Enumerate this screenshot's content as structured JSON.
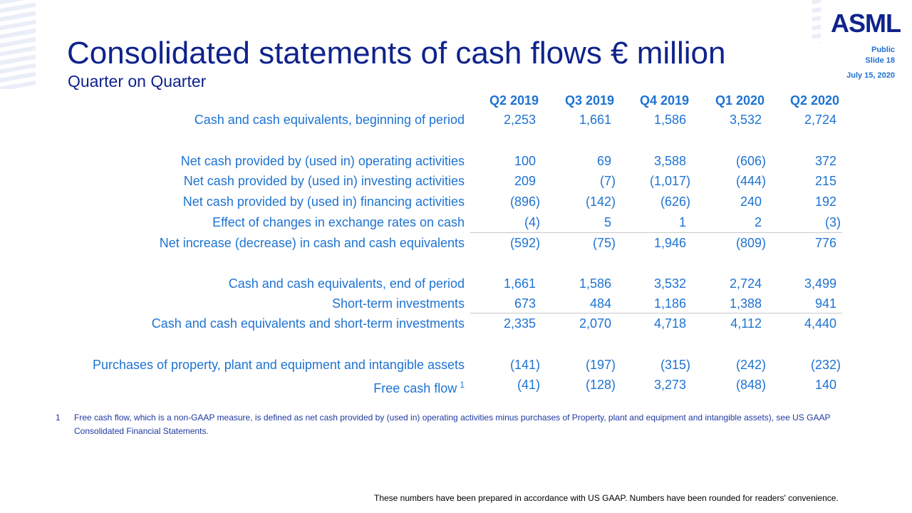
{
  "header": {
    "title": "Consolidated statements of cash flows € million",
    "subtitle": "Quarter on Quarter"
  },
  "meta": {
    "logo": "ASML",
    "classification": "Public",
    "slide": "Slide 18",
    "date": "July 15, 2020"
  },
  "table": {
    "columns": [
      "Q2 2019",
      "Q3 2019",
      "Q4 2019",
      "Q1 2020",
      "Q2 2020"
    ],
    "rows": [
      {
        "label": "Cash and cash equivalents, beginning of period",
        "values": [
          "2,253",
          "1,661",
          "1,586",
          "3,532",
          "2,724"
        ]
      },
      {
        "label": "Net cash provided by (used in) operating activities",
        "values": [
          "100",
          "69",
          "3,588",
          "(606)",
          "372"
        ]
      },
      {
        "label": "Net cash provided by (used in) investing activities",
        "values": [
          "209",
          "(7)",
          "(1,017)",
          "(444)",
          "215"
        ]
      },
      {
        "label": "Net cash provided by (used in) financing activities",
        "values": [
          "(896)",
          "(142)",
          "(626)",
          "240",
          "192"
        ]
      },
      {
        "label": "Effect of changes in exchange rates on cash",
        "values": [
          "(4)",
          "5",
          "1",
          "2",
          "(3)"
        ]
      },
      {
        "label": "Net increase (decrease) in cash and cash equivalents",
        "values": [
          "(592)",
          "(75)",
          "1,946",
          "(809)",
          "776"
        ]
      },
      {
        "label": "Cash and cash equivalents, end of period",
        "values": [
          "1,661",
          "1,586",
          "3,532",
          "2,724",
          "3,499"
        ]
      },
      {
        "label": "Short-term investments",
        "values": [
          "673",
          "484",
          "1,186",
          "1,388",
          "941"
        ]
      },
      {
        "label": "Cash and cash equivalents and short-term investments",
        "values": [
          "2,335",
          "2,070",
          "4,718",
          "4,112",
          "4,440"
        ]
      },
      {
        "label": "Purchases of property, plant and equipment and intangible assets",
        "values": [
          "(141)",
          "(197)",
          "(315)",
          "(242)",
          "(232)"
        ]
      },
      {
        "label": "Free cash flow",
        "note": "1",
        "values": [
          "(41)",
          "(128)",
          "3,273",
          "(848)",
          "140"
        ]
      }
    ]
  },
  "footnote": {
    "marker": "1",
    "text": "Free cash flow, which is a non-GAAP measure, is defined as net cash provided by (used in) operating activities minus purchases of Property, plant and equipment and intangible assets), see US GAAP Consolidated Financial Statements."
  },
  "bottom_note": "These numbers have been prepared in accordance with US GAAP.  Numbers have been rounded for readers' convenience."
}
